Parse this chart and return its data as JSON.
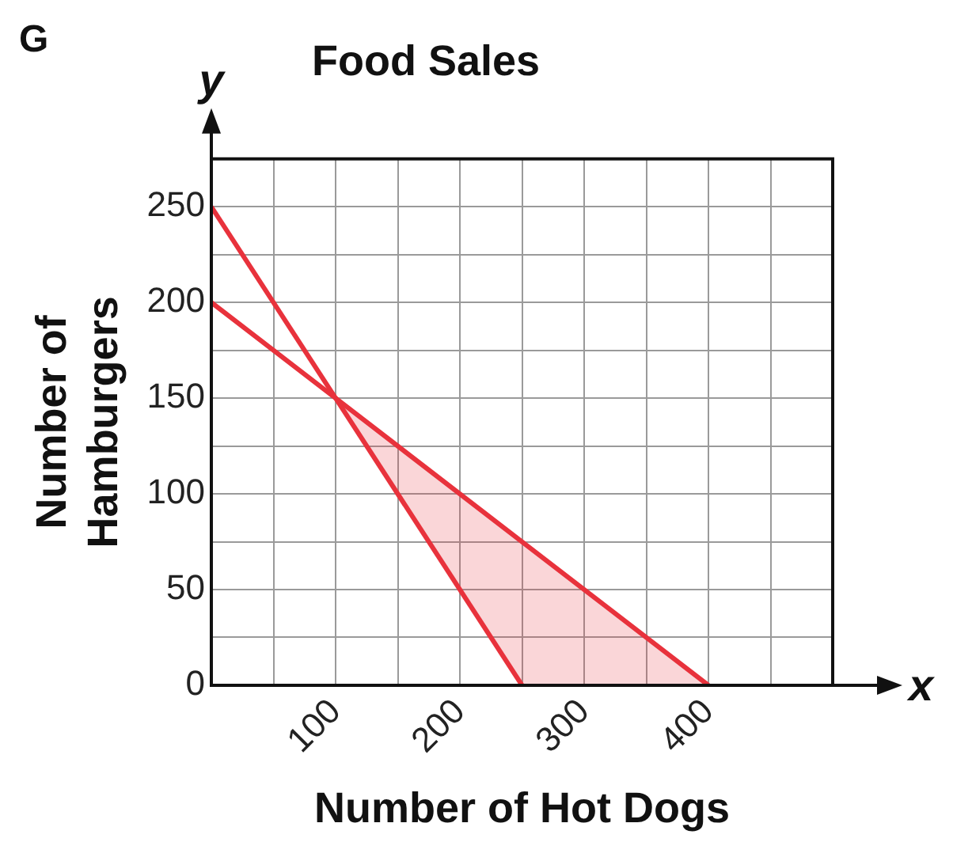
{
  "chart_data": {
    "type": "line",
    "title": "Food Sales",
    "xlabel": "Number of Hot Dogs",
    "ylabel": "Number of Hamburgers",
    "annotations": [
      "G",
      "y",
      "x"
    ],
    "xlim": [
      0,
      500
    ],
    "ylim": [
      0,
      275
    ],
    "xticks": [
      {
        "value": 0,
        "label": null
      },
      {
        "value": 50,
        "label": null
      },
      100,
      {
        "value": 150,
        "label": null
      },
      200,
      {
        "value": 250,
        "label": null
      },
      300,
      {
        "value": 350,
        "label": null
      },
      400,
      {
        "value": 450,
        "label": null
      },
      {
        "value": 500,
        "label": null
      }
    ],
    "yticks": [
      0,
      {
        "value": 25,
        "label": null
      },
      50,
      {
        "value": 75,
        "label": null
      },
      100,
      {
        "value": 125,
        "label": null
      },
      150,
      {
        "value": 175,
        "label": null
      },
      200,
      {
        "value": 225,
        "label": null
      },
      250,
      {
        "value": 275,
        "label": null
      }
    ],
    "grid": true,
    "legend": false,
    "series": [
      {
        "color": "#e8323c",
        "x": [
          0,
          250
        ],
        "values": [
          250,
          0
        ]
      },
      {
        "color": "#e8323c",
        "x": [
          0,
          100,
          250,
          400
        ],
        "values": [
          200,
          150,
          75,
          0
        ],
        "lower": [
          null,
          150,
          0,
          0
        ],
        "upper": [
          null,
          150,
          75,
          0
        ]
      }
    ]
  }
}
